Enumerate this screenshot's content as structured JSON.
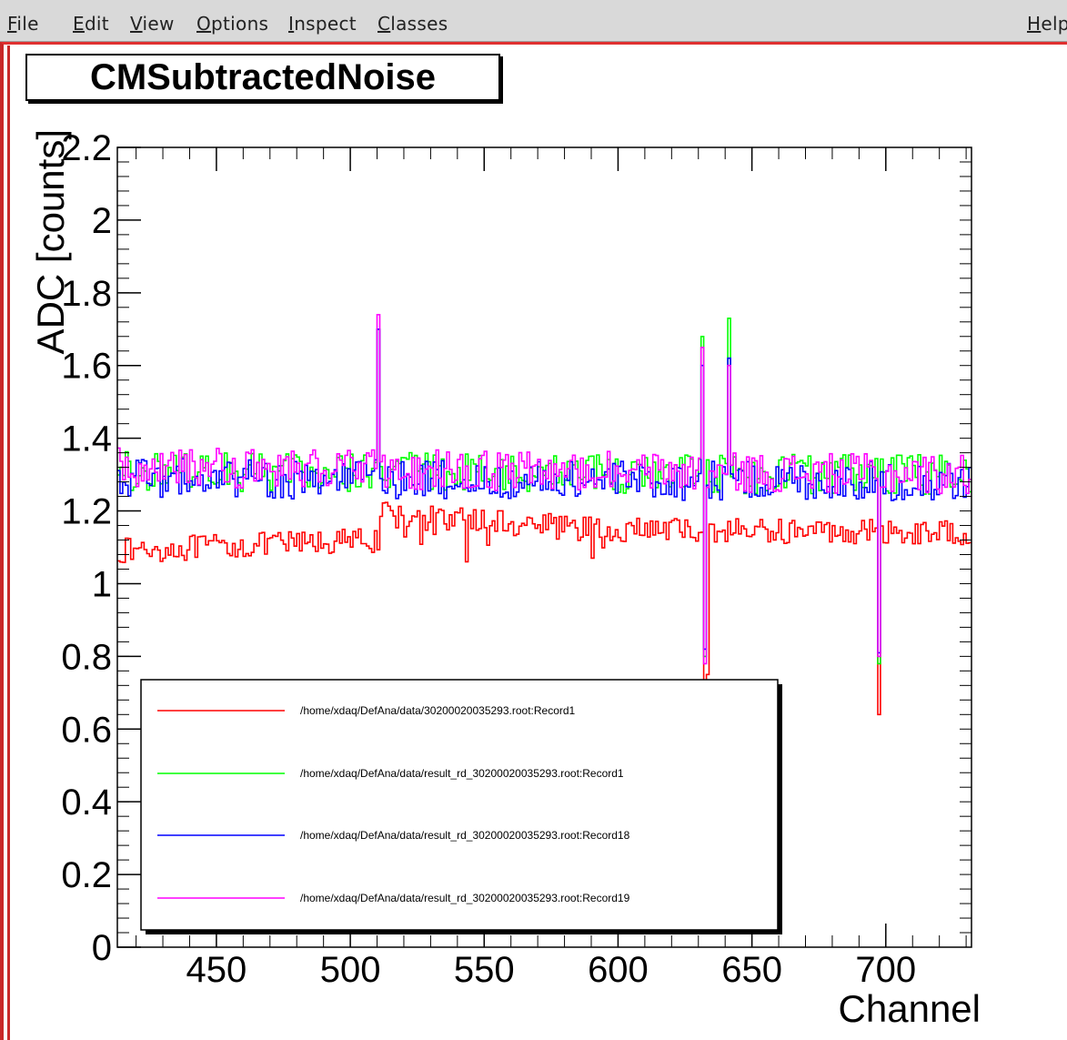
{
  "menu": {
    "file": "File",
    "edit": "Edit",
    "view": "View",
    "options": "Options",
    "inspect": "Inspect",
    "classes": "Classes",
    "help": "Help"
  },
  "colors": {
    "red": "#ff0000",
    "green": "#00ff00",
    "blue": "#0000ff",
    "magenta": "#ff00ff"
  },
  "chart_data": {
    "type": "line",
    "title": "CMSubtractedNoise",
    "xlabel": "Channel",
    "ylabel": "ADC [counts]",
    "xlim": [
      413,
      732
    ],
    "ylim": [
      0,
      2.2
    ],
    "xticks": [
      450,
      500,
      550,
      600,
      650,
      700
    ],
    "yticks": [
      0,
      0.2,
      0.4,
      0.6,
      0.8,
      1,
      1.2,
      1.4,
      1.6,
      1.8,
      2,
      2.2
    ],
    "yticklabels": [
      "0",
      "0.2",
      "0.4",
      "0.6",
      "0.8",
      "1",
      "1.2",
      "1.4",
      "1.6",
      "1.8",
      "2",
      "2.2"
    ],
    "legend_position": "bottom-left",
    "series": [
      {
        "name": "/home/xdaq/DefAna/data/30200020035293.root:Record1",
        "color": "red",
        "level_segments": [
          [
            413,
            1.09
          ],
          [
            510,
            1.12
          ],
          [
            512,
            1.19
          ],
          [
            590,
            1.15
          ],
          [
            732,
            1.14
          ]
        ],
        "spikes": [
          [
            632,
            0.65
          ],
          [
            633,
            0.75
          ],
          [
            697,
            0.64
          ]
        ]
      },
      {
        "name": "/home/xdaq/DefAna/data/result_rd_30200020035293.root:Record1",
        "color": "green",
        "level_segments": [
          [
            413,
            1.31
          ],
          [
            732,
            1.3
          ]
        ],
        "spikes": [
          [
            510,
            1.7
          ],
          [
            631,
            1.68
          ],
          [
            641,
            1.73
          ],
          [
            632,
            0.8
          ],
          [
            697,
            0.78
          ]
        ]
      },
      {
        "name": "/home/xdaq/DefAna/data/result_rd_30200020035293.root:Record18",
        "color": "blue",
        "level_segments": [
          [
            413,
            1.29
          ],
          [
            732,
            1.28
          ]
        ],
        "spikes": [
          [
            510,
            1.7
          ],
          [
            631,
            1.6
          ],
          [
            641,
            1.62
          ],
          [
            632,
            0.82
          ],
          [
            697,
            0.81
          ]
        ]
      },
      {
        "name": "/home/xdaq/DefAna/data/result_rd_30200020035293.root:Record19",
        "color": "magenta",
        "level_segments": [
          [
            413,
            1.32
          ],
          [
            732,
            1.3
          ]
        ],
        "spikes": [
          [
            510,
            1.74
          ],
          [
            631,
            1.65
          ],
          [
            641,
            1.6
          ],
          [
            632,
            0.78
          ],
          [
            697,
            0.8
          ]
        ]
      }
    ]
  }
}
